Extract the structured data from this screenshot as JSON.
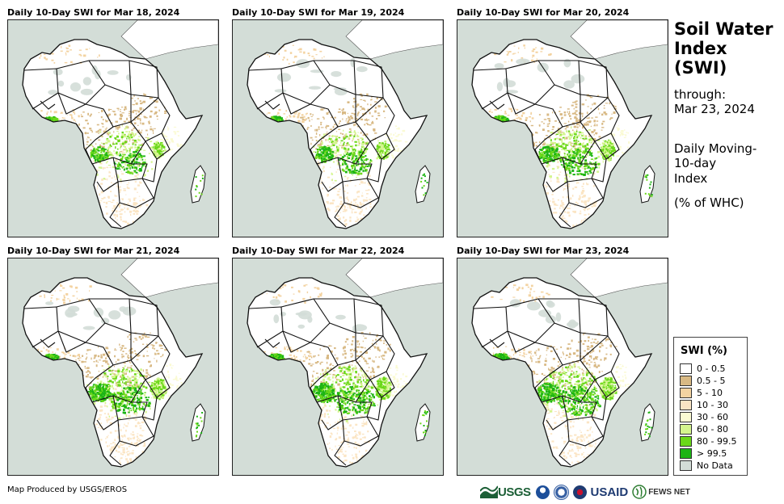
{
  "panels": [
    {
      "title": "Daily 10-Day SWI for Mar 18, 2024",
      "wetness": 0.3
    },
    {
      "title": "Daily 10-Day SWI for Mar 19, 2024",
      "wetness": 0.35
    },
    {
      "title": "Daily 10-Day SWI for Mar 20, 2024",
      "wetness": 0.5
    },
    {
      "title": "Daily 10-Day SWI for Mar 21, 2024",
      "wetness": 0.6
    },
    {
      "title": "Daily 10-Day SWI for Mar 22, 2024",
      "wetness": 0.65
    },
    {
      "title": "Daily 10-Day SWI for Mar 23, 2024",
      "wetness": 0.7
    }
  ],
  "sidebar": {
    "title_line1": "Soil Water",
    "title_line2": "Index",
    "title_line3": "(SWI)",
    "through_label": "through:",
    "through_date": "Mar 23, 2024",
    "desc_line1": "Daily Moving-",
    "desc_line2": "10-day",
    "desc_line3": "Index",
    "unit": "(% of WHC)"
  },
  "legend": {
    "title": "SWI (%)",
    "items": [
      {
        "label": "0 - 0.5",
        "color": "#ffffff"
      },
      {
        "label": "0.5 - 5",
        "color": "#d8b984"
      },
      {
        "label": "5 - 10",
        "color": "#f3d3a1"
      },
      {
        "label": "10 - 30",
        "color": "#fbe5c4"
      },
      {
        "label": "30 - 60",
        "color": "#fafad2"
      },
      {
        "label": "60 - 80",
        "color": "#d4f58e"
      },
      {
        "label": "80 - 99.5",
        "color": "#6ad819"
      },
      {
        "label": "> 99.5",
        "color": "#1cb414"
      },
      {
        "label": "No Data",
        "color": "#d3ddd7"
      }
    ]
  },
  "colors": {
    "ocean": "#d3ddd7",
    "land": "#ffffff",
    "border": "#111111"
  },
  "footer": {
    "credit": "Map Produced by USGS/EROS",
    "logos": {
      "usgs": "USGS",
      "usaid": "USAID",
      "fews": "FEWS NET"
    }
  }
}
